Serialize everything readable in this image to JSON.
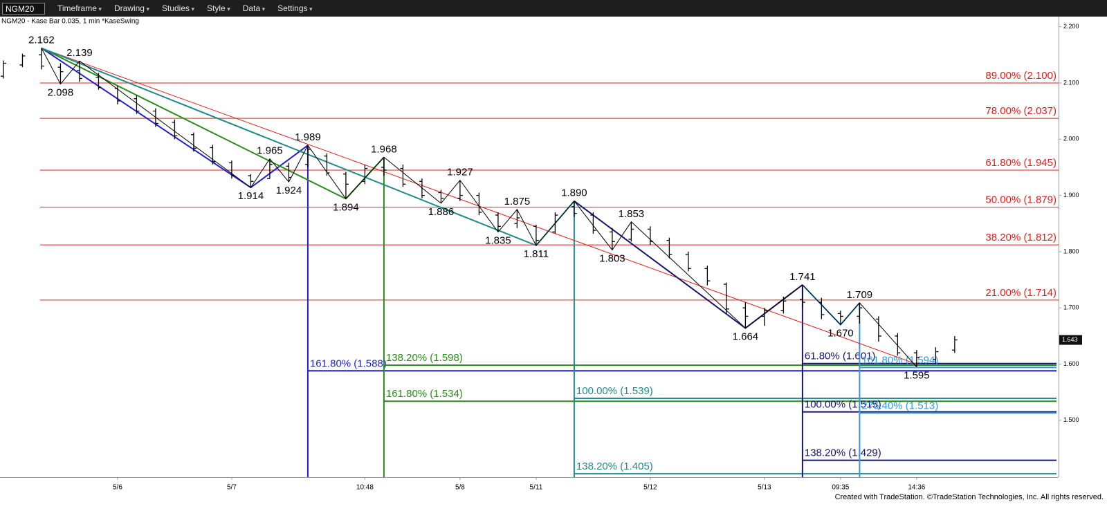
{
  "toolbar": {
    "symbol": "NGM20",
    "items": [
      "Timeframe",
      "Drawing",
      "Studies",
      "Style",
      "Data",
      "Settings"
    ]
  },
  "footer": "Created with TradeStation. ©TradeStation Technologies, Inc. All rights reserved.",
  "chart_data": {
    "type": "ohlc",
    "title": "NGM20 - Kase Bar 0.035, 1 min  *KaseSwing",
    "xlim": [
      -0.18,
      55.46
    ],
    "ylim": [
      1.399,
      2.218
    ],
    "yticks": [
      {
        "value": 1.5,
        "label": "1.500"
      },
      {
        "value": 1.6,
        "label": "1.600"
      },
      {
        "value": 1.7,
        "label": "1.700"
      },
      {
        "value": 1.8,
        "label": "1.800"
      },
      {
        "value": 1.9,
        "label": "1.900"
      },
      {
        "value": 2.0,
        "label": "2.000"
      },
      {
        "value": 2.1,
        "label": "2.100"
      },
      {
        "value": 2.2,
        "label": "2.200"
      }
    ],
    "xticks": [
      {
        "value": 6,
        "label": "5/6"
      },
      {
        "value": 12,
        "label": "5/7"
      },
      {
        "value": 19,
        "label": "10:48"
      },
      {
        "value": 24,
        "label": "5/8"
      },
      {
        "value": 28,
        "label": "5/11"
      },
      {
        "value": 34,
        "label": "5/12"
      },
      {
        "value": 40,
        "label": "5/13"
      },
      {
        "value": 44,
        "label": "09:35"
      },
      {
        "value": 48,
        "label": "14:36"
      }
    ],
    "last_price": 1.643,
    "bars": {
      "x": [
        0,
        1,
        2,
        3,
        4,
        5,
        6,
        7,
        8,
        9,
        10,
        11,
        12,
        13,
        14,
        15,
        16,
        17,
        18,
        19,
        20,
        21,
        22,
        23,
        24,
        25,
        26,
        27,
        28,
        29,
        30,
        31,
        32,
        33,
        34,
        35,
        36,
        37,
        38,
        39,
        40,
        41,
        42,
        43,
        44,
        45,
        46,
        47,
        48,
        49,
        50
      ],
      "open": [
        2.112,
        2.132,
        2.15,
        2.128,
        2.122,
        2.11,
        2.09,
        2.072,
        2.05,
        2.03,
        2.008,
        1.985,
        1.958,
        1.935,
        1.93,
        1.952,
        1.955,
        1.97,
        1.938,
        1.925,
        1.95,
        1.948,
        1.925,
        1.905,
        1.895,
        1.9,
        1.865,
        1.85,
        1.845,
        1.835,
        1.88,
        1.865,
        1.835,
        1.822,
        1.84,
        1.82,
        1.795,
        1.77,
        1.742,
        1.7,
        1.685,
        1.695,
        1.715,
        1.71,
        1.69,
        1.685,
        1.68,
        1.65,
        1.62,
        1.608,
        1.625
      ],
      "high": [
        2.14,
        2.152,
        2.162,
        2.135,
        2.139,
        2.118,
        2.095,
        2.078,
        2.055,
        2.035,
        2.012,
        1.99,
        1.962,
        1.938,
        1.965,
        1.958,
        1.989,
        1.975,
        1.942,
        1.955,
        1.968,
        1.955,
        1.93,
        1.91,
        1.927,
        1.905,
        1.87,
        1.875,
        1.848,
        1.87,
        1.89,
        1.87,
        1.842,
        1.853,
        1.845,
        1.825,
        1.8,
        1.775,
        1.745,
        1.71,
        1.7,
        1.72,
        1.741,
        1.718,
        1.695,
        1.709,
        1.685,
        1.655,
        1.625,
        1.63,
        1.65
      ],
      "low": [
        2.108,
        2.128,
        2.124,
        2.098,
        2.102,
        2.088,
        2.062,
        2.045,
        2.022,
        2.0,
        1.978,
        1.955,
        1.93,
        1.914,
        1.93,
        1.924,
        1.95,
        1.935,
        1.894,
        1.92,
        1.935,
        1.915,
        1.895,
        1.886,
        1.89,
        1.865,
        1.835,
        1.842,
        1.811,
        1.832,
        1.862,
        1.832,
        1.803,
        1.818,
        1.812,
        1.788,
        1.765,
        1.74,
        1.69,
        1.664,
        1.668,
        1.69,
        1.7,
        1.68,
        1.67,
        1.672,
        1.64,
        1.615,
        1.595,
        1.6,
        1.62
      ],
      "close": [
        2.135,
        2.148,
        2.13,
        2.12,
        2.108,
        2.092,
        2.068,
        2.05,
        2.028,
        2.006,
        1.984,
        1.96,
        1.935,
        1.925,
        1.955,
        1.932,
        1.982,
        1.94,
        1.92,
        1.948,
        1.945,
        1.92,
        1.9,
        1.895,
        1.9,
        1.87,
        1.845,
        1.86,
        1.82,
        1.865,
        1.868,
        1.838,
        1.818,
        1.84,
        1.818,
        1.795,
        1.77,
        1.748,
        1.698,
        1.685,
        1.695,
        1.712,
        1.71,
        1.688,
        1.685,
        1.7,
        1.65,
        1.62,
        1.612,
        1.622,
        1.643
      ]
    },
    "swings": {
      "x": [
        2,
        3,
        4,
        13,
        14,
        15,
        16,
        18,
        20,
        23,
        24,
        26,
        27,
        28,
        30,
        32,
        33,
        39,
        42,
        44,
        45,
        48
      ],
      "values": [
        2.162,
        2.098,
        2.139,
        1.914,
        1.965,
        1.924,
        1.989,
        1.894,
        1.968,
        1.886,
        1.927,
        1.835,
        1.875,
        1.811,
        1.89,
        1.803,
        1.853,
        1.664,
        1.741,
        1.67,
        1.709,
        1.595
      ],
      "value_labels": [
        "2.162",
        "2.098",
        "2.139",
        "1.914",
        "1.965",
        "1.924",
        "1.989",
        "1.894",
        "1.968",
        "1.886",
        "1.927",
        "1.835",
        "1.875",
        "1.811",
        "1.890",
        "1.803",
        "1.853",
        "1.664",
        "1.741",
        "1.670",
        "1.709",
        "1.595"
      ],
      "color": "#000000"
    },
    "swing_lines": [
      {
        "color": "#1f1fd0",
        "x": [
          2,
          13,
          16
        ],
        "values": [
          2.162,
          1.914,
          1.989
        ]
      },
      {
        "color": "#2a8a1a",
        "x": [
          2,
          18,
          20
        ],
        "values": [
          2.162,
          1.894,
          1.968
        ]
      },
      {
        "color": "#1f8a8a",
        "x": [
          2,
          28,
          30
        ],
        "values": [
          2.162,
          1.811,
          1.89
        ]
      },
      {
        "color": "#14146e",
        "x": [
          30,
          39,
          42
        ],
        "values": [
          1.89,
          1.664,
          1.741
        ]
      },
      {
        "color": "#3399e6",
        "x": [
          42,
          44,
          45
        ],
        "values": [
          1.741,
          1.67,
          1.709
        ]
      }
    ],
    "trend_line": {
      "color": "#e0201b",
      "x": [
        2,
        48
      ],
      "values": [
        2.162,
        1.6
      ]
    },
    "retracements": {
      "color": "#e0201b",
      "levels": [
        {
          "value": 2.1,
          "label": "89.00% (2.100)"
        },
        {
          "value": 2.037,
          "label": "78.00% (2.037)"
        },
        {
          "value": 1.945,
          "label": "61.80% (1.945)"
        },
        {
          "value": 1.879,
          "label": "50.00% (1.879)"
        },
        {
          "value": 1.812,
          "label": "38.20% (1.812)"
        },
        {
          "value": 1.714,
          "label": "21.00% (1.714)"
        }
      ]
    },
    "projections": [
      {
        "color": "#1f1fd0",
        "x": 16,
        "value": 1.989,
        "levels": [
          {
            "value": 1.588,
            "label": "161.80% (1.588)"
          }
        ]
      },
      {
        "color": "#2a8a1a",
        "x": 20,
        "value": 1.968,
        "levels": [
          {
            "value": 1.598,
            "label": "138.20% (1.598)"
          },
          {
            "value": 1.534,
            "label": "161.80% (1.534)"
          }
        ]
      },
      {
        "color": "#1f8a8a",
        "x": 30,
        "value": 1.89,
        "levels": [
          {
            "value": 1.539,
            "label": "100.00% (1.539)"
          },
          {
            "value": 1.405,
            "label": "138.20% (1.405)"
          }
        ]
      },
      {
        "color": "#14146e",
        "x": 42,
        "value": 1.741,
        "levels": [
          {
            "value": 1.601,
            "label": "61.80% (1.601)"
          },
          {
            "value": 1.515,
            "label": "100.00% (1.515)"
          },
          {
            "value": 1.429,
            "label": "138.20% (1.429)"
          }
        ]
      },
      {
        "color": "#3399e6",
        "x": 45,
        "value": 1.709,
        "levels": [
          {
            "value": 1.594,
            "label": "161.80% (1.594)"
          },
          {
            "value": 1.513,
            "label": "276.40% (1.513)"
          }
        ]
      }
    ]
  }
}
